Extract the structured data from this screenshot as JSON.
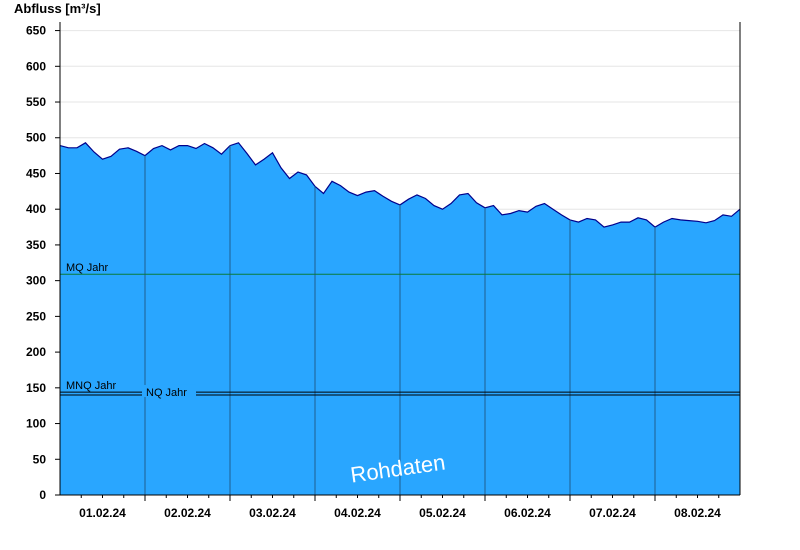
{
  "chart_data": {
    "type": "area",
    "ylabel": "Abfluss [m³/s]",
    "ylim": [
      0,
      662
    ],
    "yticks": [
      0,
      50,
      100,
      150,
      200,
      250,
      300,
      350,
      400,
      450,
      500,
      550,
      600,
      650
    ],
    "x_domain": [
      0,
      8
    ],
    "x_ticks": [
      {
        "label": "01.02.24",
        "x": 0.5
      },
      {
        "label": "02.02.24",
        "x": 1.5
      },
      {
        "label": "03.02.24",
        "x": 2.5
      },
      {
        "label": "04.02.24",
        "x": 3.5
      },
      {
        "label": "05.02.24",
        "x": 4.5
      },
      {
        "label": "06.02.24",
        "x": 5.5
      },
      {
        "label": "07.02.24",
        "x": 6.5
      },
      {
        "label": "08.02.24",
        "x": 7.5
      }
    ],
    "day_separators": [
      1,
      2,
      3,
      4,
      5,
      6,
      7
    ],
    "colors": {
      "fill": "#29a6ff",
      "line": "#00008b",
      "mq_line": "#0a7a3a",
      "ref_line": "#000000",
      "grid": "#e6e6e6"
    },
    "series": [
      {
        "x": [
          0,
          0.1,
          0.2,
          0.3,
          0.4,
          0.5,
          0.6,
          0.7,
          0.8,
          0.9,
          1.0,
          1.1,
          1.2,
          1.3,
          1.4,
          1.5,
          1.6,
          1.7,
          1.8,
          1.9,
          2.0,
          2.1,
          2.2,
          2.3,
          2.4,
          2.5,
          2.6,
          2.7,
          2.8,
          2.9,
          3.0,
          3.1,
          3.2,
          3.3,
          3.4,
          3.5,
          3.6,
          3.7,
          3.8,
          3.9,
          4.0,
          4.1,
          4.2,
          4.3,
          4.4,
          4.5,
          4.6,
          4.7,
          4.8,
          4.9,
          5.0,
          5.1,
          5.2,
          5.3,
          5.4,
          5.5,
          5.6,
          5.7,
          5.8,
          5.9,
          6.0,
          6.1,
          6.2,
          6.3,
          6.4,
          6.5,
          6.6,
          6.7,
          6.8,
          6.9,
          7.0,
          7.1,
          7.2,
          7.3,
          7.4,
          7.5,
          7.6,
          7.7,
          7.8,
          7.9,
          8.0
        ],
        "values": [
          489,
          486,
          486,
          493,
          480,
          470,
          474,
          484,
          486,
          481,
          475,
          485,
          489,
          483,
          489,
          489,
          485,
          492,
          486,
          477,
          489,
          493,
          478,
          462,
          470,
          479,
          458,
          443,
          452,
          448,
          432,
          422,
          439,
          433,
          424,
          419,
          424,
          426,
          418,
          411,
          406,
          414,
          420,
          415,
          405,
          400,
          408,
          420,
          422,
          409,
          402,
          405,
          392,
          394,
          398,
          396,
          404,
          408,
          400,
          392,
          385,
          382,
          387,
          385,
          375,
          378,
          382,
          382,
          388,
          385,
          375,
          382,
          387,
          385,
          384,
          383,
          381,
          384,
          392,
          390,
          400
        ]
      }
    ],
    "reference_lines": [
      {
        "label": "MQ Jahr",
        "value": 309,
        "color": "#0a7a3a"
      },
      {
        "label": "MNQ Jahr",
        "value": 144,
        "color": "#000000"
      },
      {
        "label": "NQ Jahr",
        "value": 140,
        "color": "#000000"
      }
    ],
    "annotations": [
      {
        "text": "Rohdaten"
      }
    ],
    "grid": true
  }
}
